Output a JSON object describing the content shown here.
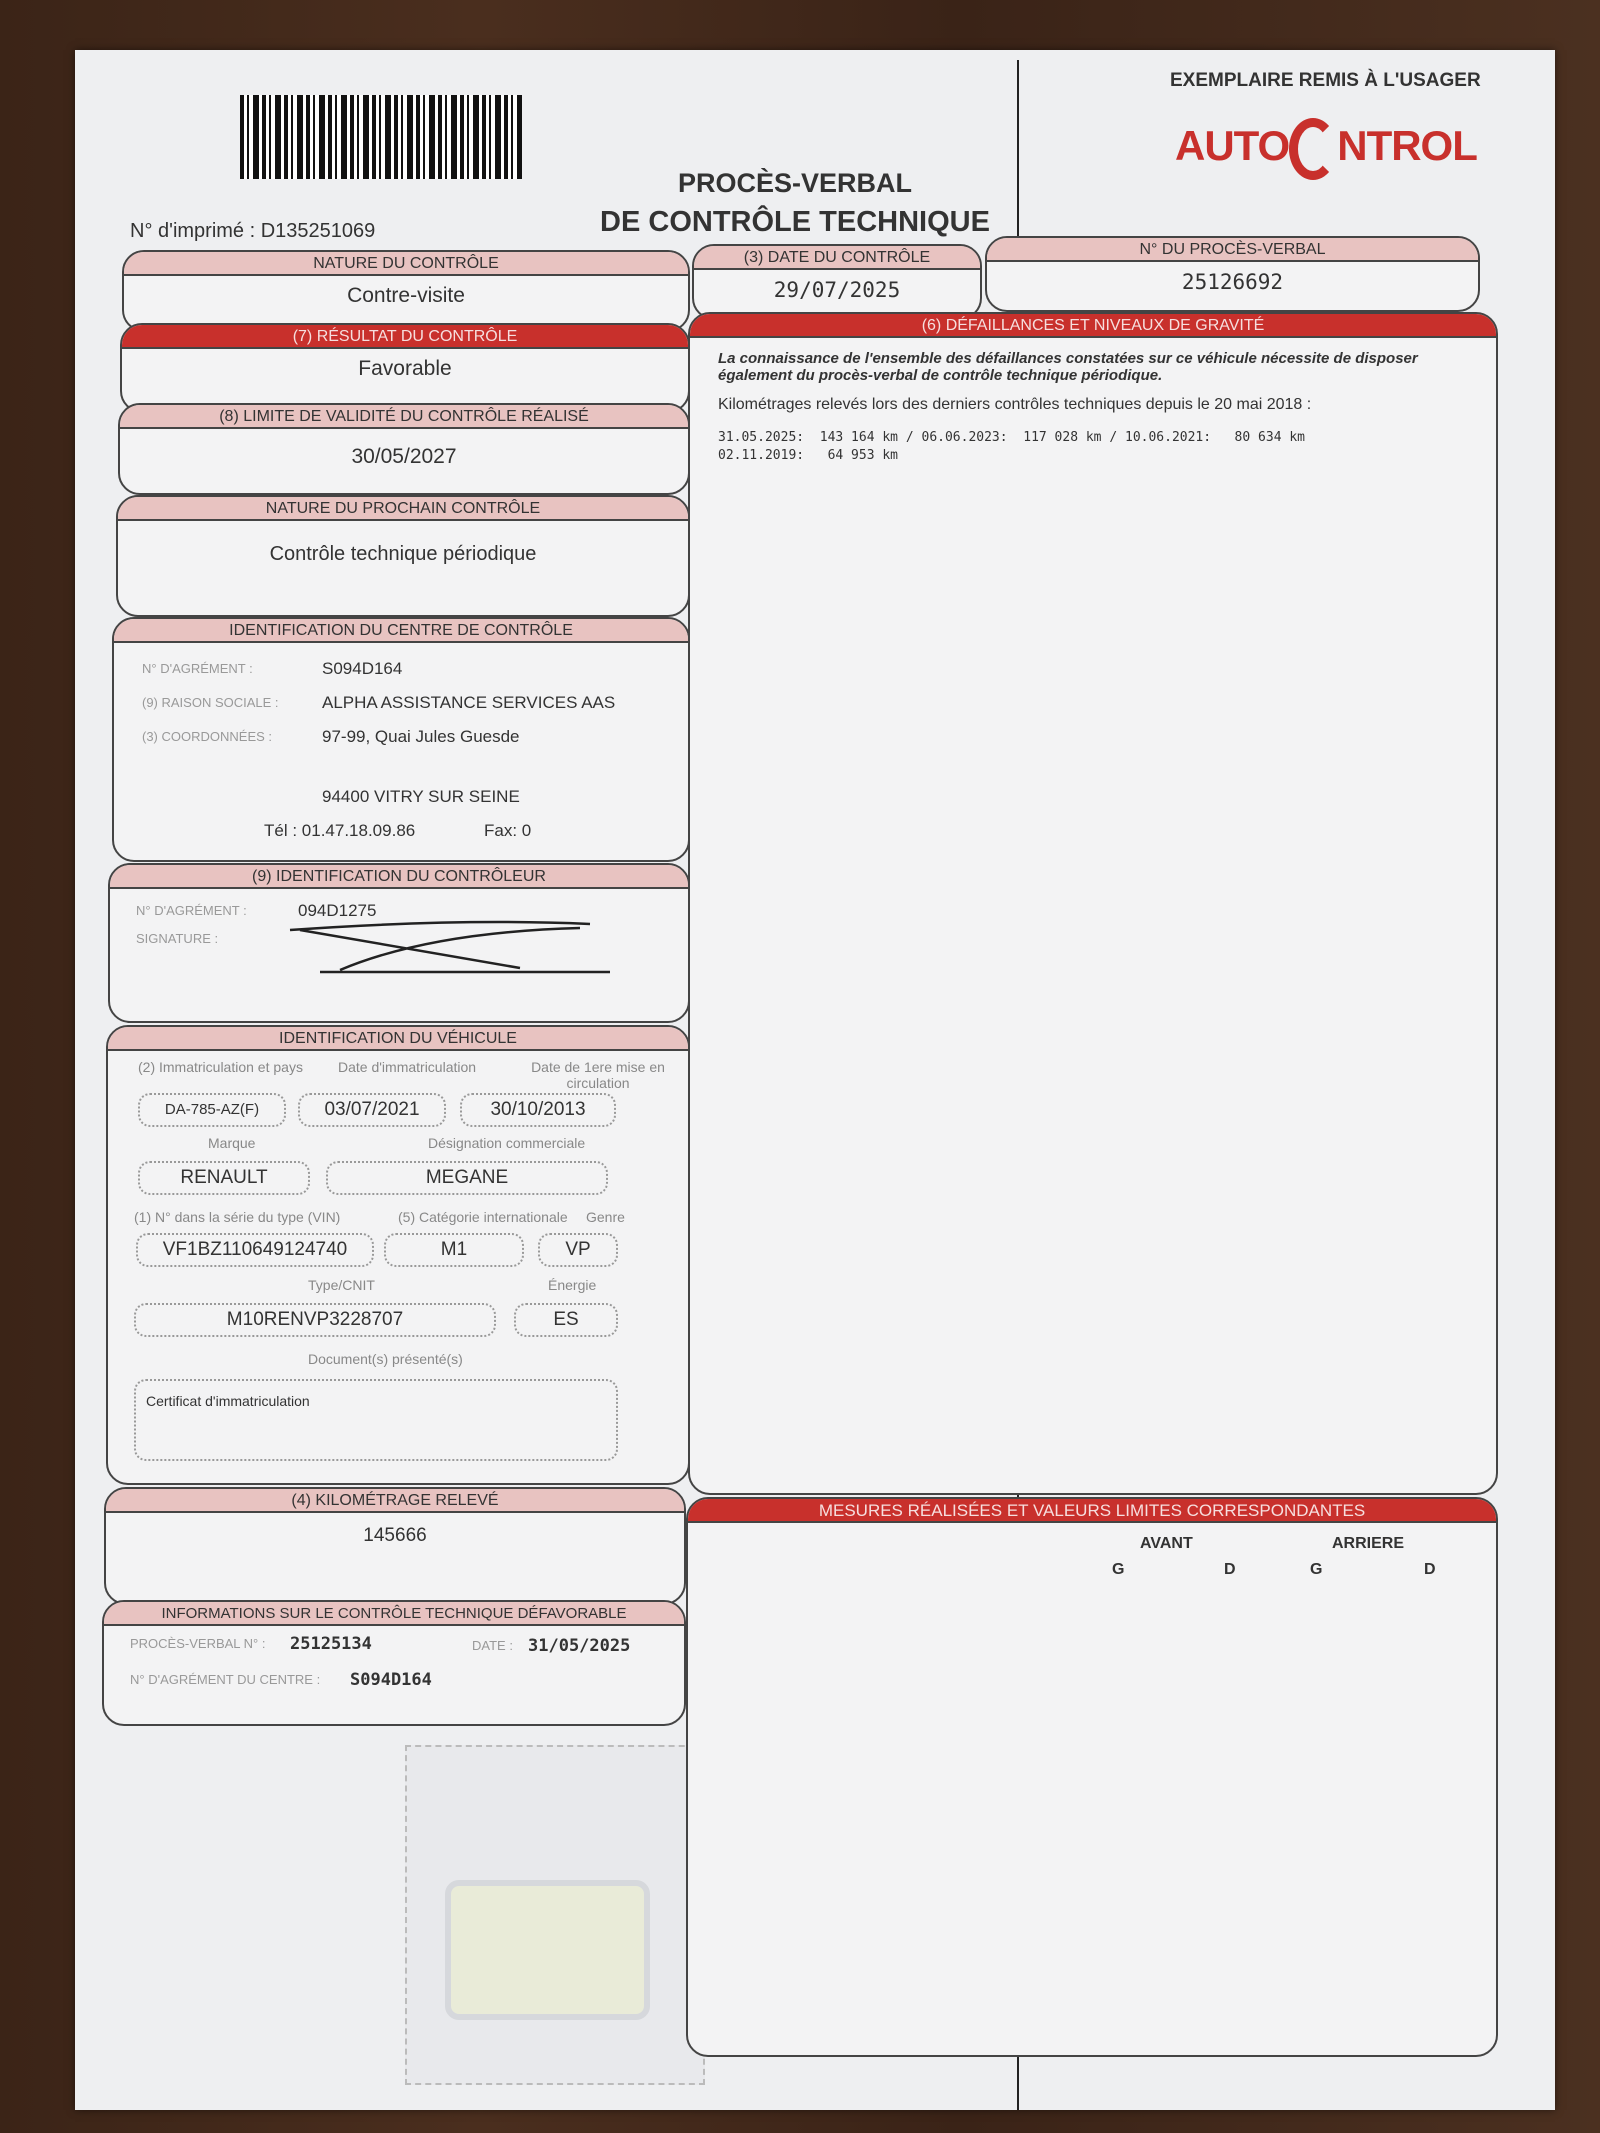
{
  "header": {
    "copy_label": "EXEMPLAIRE REMIS À L'USAGER",
    "logo_text": "AUTOCONTROL",
    "title_line1": "PROCÈS-VERBAL",
    "title_line2": "DE CONTRÔLE TECHNIQUE",
    "print_no_label": "N° d'imprimé :",
    "print_no": "D135251069"
  },
  "colors": {
    "brand_red": "#c8302c",
    "header_pink": "#e8c3c1"
  },
  "nature": {
    "label": "NATURE DU CONTRÔLE",
    "value": "Contre-visite"
  },
  "date": {
    "label": "(3) DATE DU CONTRÔLE",
    "value": "29/07/2025"
  },
  "pv": {
    "label": "N° DU PROCÈS-VERBAL",
    "value": "25126692"
  },
  "result": {
    "label": "(7) RÉSULTAT DU CONTRÔLE",
    "value": "Favorable"
  },
  "validity": {
    "label": "(8) LIMITE DE VALIDITÉ DU CONTRÔLE RÉALISÉ",
    "value": "30/05/2027"
  },
  "next": {
    "label": "NATURE DU PROCHAIN CONTRÔLE",
    "value": "Contrôle technique périodique"
  },
  "centre": {
    "label": "IDENTIFICATION DU CENTRE DE CONTRÔLE",
    "agrement_label": "N° D'AGRÉMENT :",
    "agrement": "S094D164",
    "raison_label": "(9) RAISON SOCIALE :",
    "raison": "ALPHA ASSISTANCE SERVICES AAS",
    "coord_label": "(3) COORDONNÉES :",
    "address1": "97-99, Quai Jules Guesde",
    "address2": "94400 VITRY SUR SEINE",
    "tel": "Tél : 01.47.18.09.86",
    "fax": "Fax: 0"
  },
  "controleur": {
    "label": "(9) IDENTIFICATION DU CONTRÔLEUR",
    "agrement_label": "N° D'AGRÉMENT :",
    "agrement": "094D1275",
    "signature_label": "SIGNATURE :"
  },
  "vehicle": {
    "label": "IDENTIFICATION DU VÉHICULE",
    "immat_label": "(2) Immatriculation et pays",
    "date_immat_label": "Date d'immatriculation",
    "first_date_label": "Date de 1ere mise en circulation",
    "immat": "DA-785-AZ(F)",
    "date_immat": "03/07/2021",
    "first_date": "30/10/2013",
    "marque_label": "Marque",
    "designation_label": "Désignation commerciale",
    "marque": "RENAULT",
    "designation": "MEGANE",
    "vin_label": "(1) N° dans la série du type (VIN)",
    "cat_label": "(5) Catégorie internationale",
    "genre_label": "Genre",
    "vin": "VF1BZ110649124740",
    "cat": "M1",
    "genre": "VP",
    "cnit_label": "Type/CNIT",
    "energie_label": "Énergie",
    "cnit": "M10RENVP3228707",
    "energie": "ES",
    "docs_label": "Document(s) présenté(s)",
    "docs": "Certificat d'immatriculation"
  },
  "km": {
    "label": "(4) KILOMÉTRAGE RELEVÉ",
    "value": "145666"
  },
  "defav": {
    "label": "INFORMATIONS SUR LE CONTRÔLE TECHNIQUE DÉFAVORABLE",
    "pv_label": "PROCÈS-VERBAL N° :",
    "pv": "25125134",
    "date_label": "DATE :",
    "date": "31/05/2025",
    "centre_label": "N° D'AGRÉMENT DU CENTRE :",
    "centre": "S094D164"
  },
  "defaillances": {
    "label": "(6) DÉFAILLANCES ET NIVEAUX DE GRAVITÉ",
    "notice": "La connaissance de l'ensemble des défaillances constatées sur ce véhicule nécessite de disposer également du procès-verbal de contrôle technique périodique.",
    "km_intro": "Kilométrages relevés lors des derniers contrôles techniques depuis le 20 mai 2018 :",
    "km_line1": "31.05.2025:  143 164 km / 06.06.2023:  117 028 km / 10.06.2021:   80 634 km",
    "km_line2": "02.11.2019:   64 953 km"
  },
  "mesures": {
    "label": "MESURES RÉALISÉES ET VALEURS LIMITES CORRESPONDANTES",
    "avant": "AVANT",
    "arriere": "ARRIERE",
    "g": "G",
    "d": "D"
  }
}
